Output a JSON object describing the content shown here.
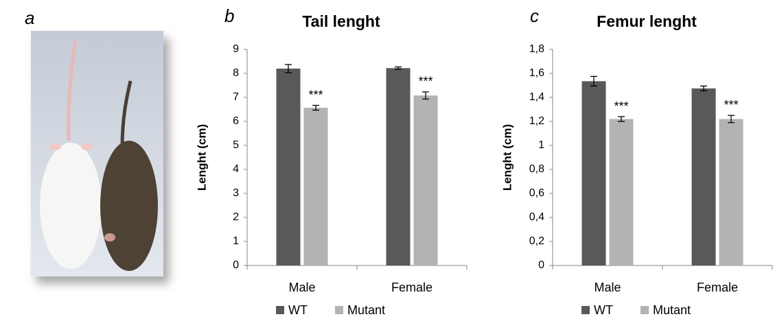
{
  "photo_label": "a",
  "chart_data": [
    {
      "type": "bar",
      "panel_label": "b",
      "title": "Tail lenght",
      "y_label": "Lenght (cm)",
      "categories": [
        "Male",
        "Female"
      ],
      "series": [
        {
          "name": "WT",
          "color": "#595959",
          "values": [
            8.2,
            8.22
          ],
          "errors": [
            0.17,
            0.05
          ]
        },
        {
          "name": "Mutant",
          "color": "#b3b3b3",
          "values": [
            6.57,
            7.08
          ],
          "errors": [
            0.1,
            0.15
          ],
          "significance": [
            "***",
            "***"
          ]
        }
      ],
      "ylim": [
        0,
        9
      ],
      "yticks": [
        0,
        1,
        2,
        3,
        4,
        5,
        6,
        7,
        8,
        9
      ],
      "legend": "bottom"
    },
    {
      "type": "bar",
      "panel_label": "c",
      "title": "Femur lenght",
      "y_label": "Lenght (cm)",
      "categories": [
        "Male",
        "Female"
      ],
      "series": [
        {
          "name": "WT",
          "color": "#595959",
          "values": [
            1.535,
            1.475
          ],
          "errors": [
            0.04,
            0.02
          ]
        },
        {
          "name": "Mutant",
          "color": "#b3b3b3",
          "values": [
            1.22,
            1.22
          ],
          "errors": [
            0.02,
            0.03
          ],
          "significance": [
            "***",
            "***"
          ]
        }
      ],
      "ylim": [
        0,
        1.8
      ],
      "yticks": [
        0,
        {
          "value": 0.2,
          "label": "0,2"
        },
        {
          "value": 0.4,
          "label": "0,4"
        },
        {
          "value": 0.6,
          "label": "0,6"
        },
        {
          "value": 0.8,
          "label": "0,8"
        },
        1,
        {
          "value": 1.2,
          "label": "1,2"
        },
        {
          "value": 1.4,
          "label": "1,4"
        },
        {
          "value": 1.6,
          "label": "1,6"
        },
        {
          "value": 1.8,
          "label": "1,8"
        }
      ],
      "legend": "bottom"
    }
  ]
}
